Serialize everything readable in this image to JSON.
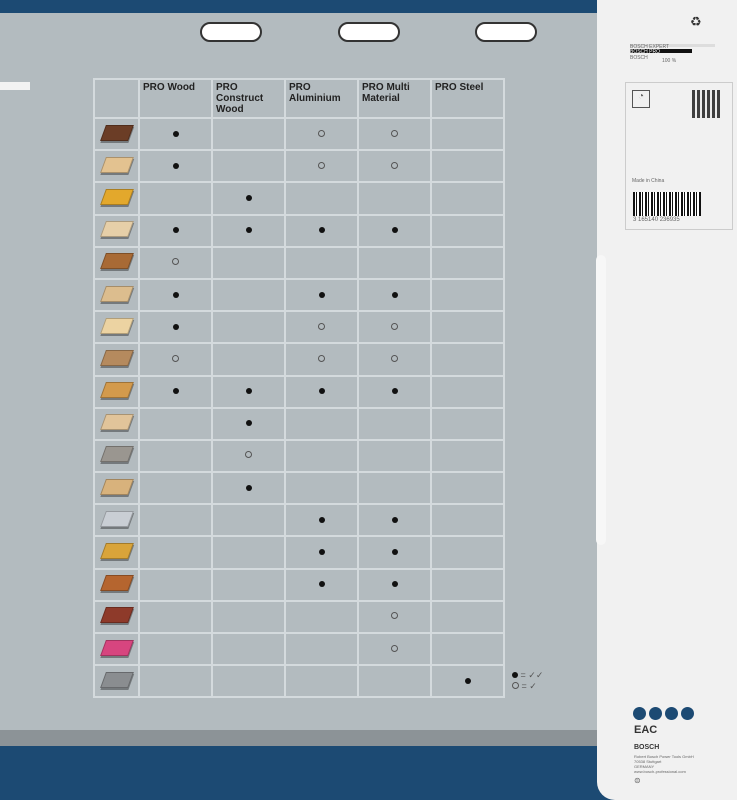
{
  "columns": [
    "PRO Wood",
    "PRO Construct Wood",
    "PRO Aluminium",
    "PRO Multi Material",
    "PRO Steel"
  ],
  "rows": [
    {
      "color": "#6b3d26",
      "marks": [
        "full",
        "",
        "partial",
        "partial",
        ""
      ]
    },
    {
      "color": "#e3c290",
      "marks": [
        "full",
        "",
        "partial",
        "partial",
        ""
      ]
    },
    {
      "color": "#e3a82c",
      "marks": [
        "",
        "full",
        "",
        "",
        ""
      ]
    },
    {
      "color": "#e6cfa8",
      "marks": [
        "full",
        "full",
        "full",
        "full",
        ""
      ]
    },
    {
      "color": "#a86a35",
      "marks": [
        "partial",
        "",
        "",
        "",
        ""
      ]
    },
    {
      "color": "#dcbd8e",
      "marks": [
        "full",
        "",
        "full",
        "full",
        ""
      ]
    },
    {
      "color": "#ecd3a2",
      "marks": [
        "full",
        "",
        "partial",
        "partial",
        ""
      ]
    },
    {
      "color": "#b58a5e",
      "marks": [
        "partial",
        "",
        "partial",
        "partial",
        ""
      ]
    },
    {
      "color": "#d39a4c",
      "marks": [
        "full",
        "full",
        "full",
        "full",
        ""
      ]
    },
    {
      "color": "#e1c49a",
      "marks": [
        "",
        "full",
        "",
        "",
        ""
      ]
    },
    {
      "color": "#9a9690",
      "marks": [
        "",
        "partial",
        "",
        "",
        ""
      ]
    },
    {
      "color": "#d8b27c",
      "marks": [
        "",
        "full",
        "",
        "",
        ""
      ]
    },
    {
      "color": "#c9ced4",
      "marks": [
        "",
        "",
        "full",
        "full",
        ""
      ]
    },
    {
      "color": "#d9a43a",
      "marks": [
        "",
        "",
        "full",
        "full",
        ""
      ]
    },
    {
      "color": "#b5652f",
      "marks": [
        "",
        "",
        "full",
        "full",
        ""
      ]
    },
    {
      "color": "#8e3a2a",
      "marks": [
        "",
        "",
        "",
        "partial",
        ""
      ]
    },
    {
      "color": "#d7457f",
      "marks": [
        "",
        "",
        "",
        "partial",
        ""
      ]
    },
    {
      "color": "#8a8d90",
      "marks": [
        "",
        "",
        "",
        "",
        "full"
      ]
    }
  ],
  "legend": {
    "full": "= ✓✓",
    "partial": "= ✓"
  },
  "card": {
    "bars": [
      "BOSCH EXPERT",
      "BOSCH PRO",
      "BOSCH"
    ],
    "percent": "100 %",
    "made_in": "Made in China",
    "barcode": "3 165140 236935",
    "brand": "BOSCH",
    "address": [
      "Robert Bosch Power Tools GmbH",
      "70538 Stuttgart",
      "GERMANY",
      "www.bosch-professional.com"
    ],
    "eac": "EAC"
  },
  "colors": {
    "brand_blue": "#1c4a73",
    "panel": "#b3bbbf"
  }
}
